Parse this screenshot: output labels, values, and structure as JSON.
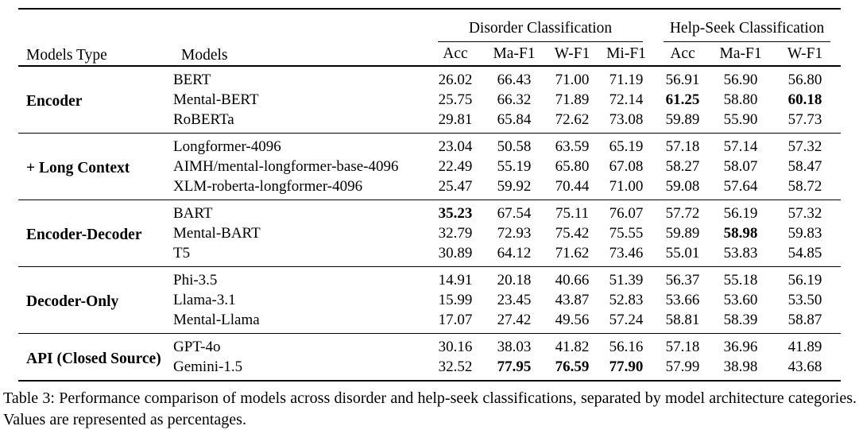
{
  "table": {
    "headers": {
      "models_type": "Models Type",
      "models": "Models",
      "disorder_group": "Disorder Classification",
      "helpseek_group": "Help-Seek Classification"
    },
    "subheaders": [
      {
        "group": "disorder",
        "label": "Acc"
      },
      {
        "group": "disorder",
        "label": "Ma-F1"
      },
      {
        "group": "disorder",
        "label": "W-F1"
      },
      {
        "group": "disorder",
        "label": "Mi-F1"
      },
      {
        "group": "helpseek",
        "label": "Acc"
      },
      {
        "group": "helpseek",
        "label": "Ma-F1"
      },
      {
        "group": "helpseek",
        "label": "W-F1"
      }
    ],
    "groups": [
      {
        "type": "Encoder",
        "rows": [
          {
            "model": "BERT",
            "values": [
              "26.02",
              "66.43",
              "71.00",
              "71.19",
              "56.91",
              "56.90",
              "56.80"
            ],
            "bold": []
          },
          {
            "model": "Mental-BERT",
            "values": [
              "25.75",
              "66.32",
              "71.89",
              "72.14",
              "61.25",
              "58.80",
              "60.18"
            ],
            "bold": [
              4,
              6
            ]
          },
          {
            "model": "RoBERTa",
            "values": [
              "29.81",
              "65.84",
              "72.62",
              "73.08",
              "59.89",
              "55.90",
              "57.73"
            ],
            "bold": []
          }
        ]
      },
      {
        "type": "+ Long Context",
        "rows": [
          {
            "model": "Longformer-4096",
            "values": [
              "23.04",
              "50.58",
              "63.59",
              "65.19",
              "57.18",
              "57.14",
              "57.32"
            ],
            "bold": []
          },
          {
            "model": "AIMH/mental-longformer-base-4096",
            "values": [
              "22.49",
              "55.19",
              "65.80",
              "67.08",
              "58.27",
              "58.07",
              "58.47"
            ],
            "bold": []
          },
          {
            "model": "XLM-roberta-longformer-4096",
            "values": [
              "25.47",
              "59.92",
              "70.44",
              "71.00",
              "59.08",
              "57.64",
              "58.72"
            ],
            "bold": []
          }
        ]
      },
      {
        "type": "Encoder-Decoder",
        "rows": [
          {
            "model": "BART",
            "values": [
              "35.23",
              "67.54",
              "75.11",
              "76.07",
              "57.72",
              "56.19",
              "57.32"
            ],
            "bold": [
              0
            ]
          },
          {
            "model": "Mental-BART",
            "values": [
              "32.79",
              "72.93",
              "75.42",
              "75.55",
              "59.89",
              "58.98",
              "59.83"
            ],
            "bold": [
              5
            ]
          },
          {
            "model": "T5",
            "values": [
              "30.89",
              "64.12",
              "71.62",
              "73.46",
              "55.01",
              "53.83",
              "54.85"
            ],
            "bold": []
          }
        ]
      },
      {
        "type": "Decoder-Only",
        "rows": [
          {
            "model": "Phi-3.5",
            "values": [
              "14.91",
              "20.18",
              "40.66",
              "51.39",
              "56.37",
              "55.18",
              "56.19"
            ],
            "bold": []
          },
          {
            "model": "Llama-3.1",
            "values": [
              "15.99",
              "23.45",
              "43.87",
              "52.83",
              "53.66",
              "53.60",
              "53.50"
            ],
            "bold": []
          },
          {
            "model": "Mental-Llama",
            "values": [
              "17.07",
              "27.42",
              "49.56",
              "57.24",
              "58.81",
              "58.39",
              "58.87"
            ],
            "bold": []
          }
        ]
      },
      {
        "type": "API (Closed Source)",
        "rows": [
          {
            "model": "GPT-4o",
            "values": [
              "30.16",
              "38.03",
              "41.82",
              "56.16",
              "57.18",
              "36.96",
              "41.89"
            ],
            "bold": []
          },
          {
            "model": "Gemini-1.5",
            "values": [
              "32.52",
              "77.95",
              "76.59",
              "77.90",
              "57.99",
              "38.98",
              "43.68"
            ],
            "bold": [
              1,
              2,
              3
            ]
          }
        ]
      }
    ]
  },
  "caption": "Table 3: Performance comparison of models across disorder and help-seek classifications, separated by model architecture categories. Values are represented as percentages."
}
